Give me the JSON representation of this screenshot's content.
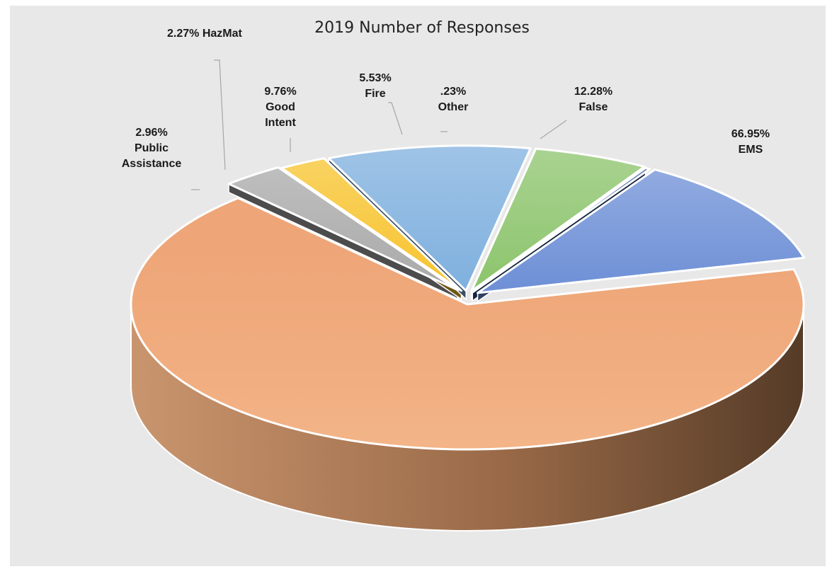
{
  "chart_data": {
    "type": "pie",
    "title": "2019 Number of Responses",
    "slices": [
      {
        "name": "EMS",
        "value": 66.95,
        "label_pct": "66.95%",
        "label_lines": [
          "EMS"
        ],
        "color": "#ec9b63"
      },
      {
        "name": "Public Assistance",
        "value": 2.96,
        "label_pct": "2.96%",
        "label_lines": [
          "Public",
          "Assistance"
        ],
        "color": "#a9a9a9"
      },
      {
        "name": "HazMat",
        "value": 2.27,
        "label_pct": "2.27%",
        "label_lines": [
          "HazMat"
        ],
        "color": "#f7c32d"
      },
      {
        "name": "Good Intent",
        "value": 9.76,
        "label_pct": "9.76%",
        "label_lines": [
          "Good",
          "Intent"
        ],
        "color": "#7fb0de"
      },
      {
        "name": "Fire",
        "value": 5.53,
        "label_pct": "5.53%",
        "label_lines": [
          "Fire"
        ],
        "color": "#8cc46c"
      },
      {
        "name": "Other",
        "value": 0.23,
        "label_pct": ".23%",
        "label_lines": [
          "Other"
        ],
        "color": "#2a4f8c"
      },
      {
        "name": "False",
        "value": 12.28,
        "label_pct": "12.28%",
        "label_lines": [
          "False"
        ],
        "color": "#6d8fd6"
      }
    ],
    "legend": "none",
    "style": "3d-exploded"
  }
}
